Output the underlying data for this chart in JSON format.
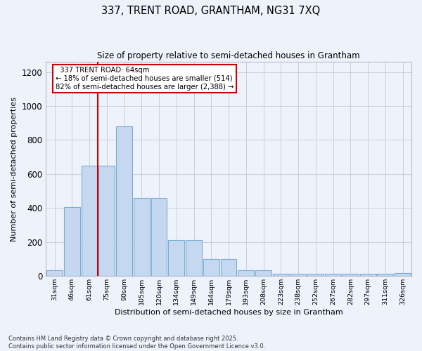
{
  "title_line1": "337, TRENT ROAD, GRANTHAM, NG31 7XQ",
  "title_line2": "Size of property relative to semi-detached houses in Grantham",
  "xlabel": "Distribution of semi-detached houses by size in Grantham",
  "ylabel": "Number of semi-detached properties",
  "categories": [
    "31sqm",
    "46sqm",
    "61sqm",
    "75sqm",
    "90sqm",
    "105sqm",
    "120sqm",
    "134sqm",
    "149sqm",
    "164sqm",
    "179sqm",
    "193sqm",
    "208sqm",
    "223sqm",
    "238sqm",
    "252sqm",
    "267sqm",
    "282sqm",
    "297sqm",
    "311sqm",
    "326sqm"
  ],
  "bar_heights": [
    35,
    405,
    650,
    650,
    880,
    460,
    460,
    210,
    210,
    100,
    100,
    35,
    35,
    15,
    15,
    12,
    12,
    12,
    12,
    12,
    18
  ],
  "red_line_x": 2.5,
  "property_label": "337 TRENT ROAD: 64sqm",
  "pct_smaller": 18,
  "pct_larger": 82,
  "n_smaller": 514,
  "n_larger": 2388,
  "bar_color": "#c5d8f0",
  "bar_edge_color": "#7aadd4",
  "highlight_color": "#cc0000",
  "box_color": "#cc0000",
  "bg_color": "#eef2fb",
  "grid_color": "#c8c8d8",
  "ylim": [
    0,
    1260
  ],
  "yticks": [
    0,
    200,
    400,
    600,
    800,
    1000,
    1200
  ],
  "footer_line1": "Contains HM Land Registry data © Crown copyright and database right 2025.",
  "footer_line2": "Contains public sector information licensed under the Open Government Licence v3.0."
}
